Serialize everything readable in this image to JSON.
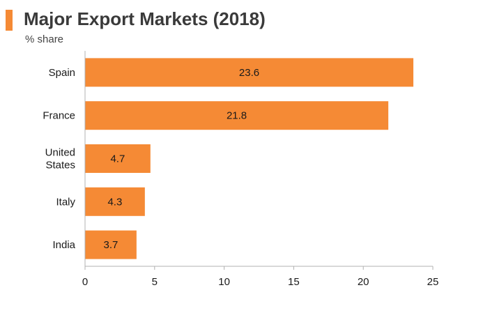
{
  "header": {
    "title": "Major Export Markets (2018)",
    "subtitle": "% share"
  },
  "colors": {
    "accent": "#F58A35",
    "bar": "#F58A35",
    "axis": "#B0B0B0",
    "text": "#1a1a1a"
  },
  "chart_data": {
    "type": "bar",
    "orientation": "horizontal",
    "title": "Major Export Markets (2018)",
    "subtitle": "% share",
    "categories": [
      "Spain",
      "France",
      "United States",
      "Italy",
      "India"
    ],
    "category_label_lines": [
      [
        "Spain"
      ],
      [
        "France"
      ],
      [
        "United",
        "States"
      ],
      [
        "Italy"
      ],
      [
        "India"
      ]
    ],
    "values": [
      23.6,
      21.8,
      4.7,
      4.3,
      3.7
    ],
    "data_labels": [
      "23.6",
      "21.8",
      "4.7",
      "4.3",
      "3.7"
    ],
    "xlim": [
      0,
      25
    ],
    "xticks": [
      0,
      5,
      10,
      15,
      20,
      25
    ],
    "grid": false,
    "legend": "none"
  }
}
